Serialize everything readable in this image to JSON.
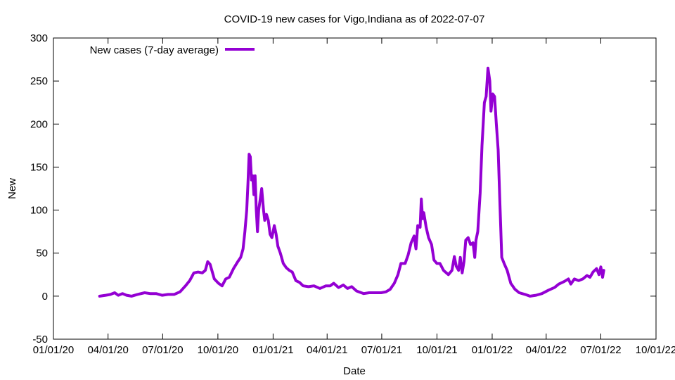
{
  "chart_data": {
    "type": "line",
    "title": "COVID-19 new cases for Vigo,Indiana as of 2022-07-07",
    "xlabel": "Date",
    "ylabel": "New",
    "xlim": [
      "2020-01-01",
      "2022-10-01"
    ],
    "ylim": [
      -50,
      300
    ],
    "x_ticks": [
      {
        "date": "2020-01-01",
        "label": "01/01/20"
      },
      {
        "date": "2020-04-01",
        "label": "04/01/20"
      },
      {
        "date": "2020-07-01",
        "label": "07/01/20"
      },
      {
        "date": "2020-10-01",
        "label": "10/01/20"
      },
      {
        "date": "2021-01-01",
        "label": "01/01/21"
      },
      {
        "date": "2021-04-01",
        "label": "04/01/21"
      },
      {
        "date": "2021-07-01",
        "label": "07/01/21"
      },
      {
        "date": "2021-10-01",
        "label": "10/01/21"
      },
      {
        "date": "2022-01-01",
        "label": "01/01/22"
      },
      {
        "date": "2022-04-01",
        "label": "04/01/22"
      },
      {
        "date": "2022-07-01",
        "label": "07/01/22"
      },
      {
        "date": "2022-10-01",
        "label": "10/01/22"
      }
    ],
    "y_ticks": [
      -50,
      0,
      50,
      100,
      150,
      200,
      250,
      300
    ],
    "grid": false,
    "legend_position": "top-left",
    "color": "#9400d3",
    "series": [
      {
        "name": "New cases (7-day average)",
        "points": [
          [
            "2020-03-18",
            0
          ],
          [
            "2020-03-28",
            1
          ],
          [
            "2020-04-05",
            2
          ],
          [
            "2020-04-12",
            4
          ],
          [
            "2020-04-18",
            1
          ],
          [
            "2020-04-25",
            3
          ],
          [
            "2020-05-02",
            1
          ],
          [
            "2020-05-10",
            0
          ],
          [
            "2020-05-20",
            2
          ],
          [
            "2020-06-01",
            4
          ],
          [
            "2020-06-10",
            3
          ],
          [
            "2020-06-20",
            3
          ],
          [
            "2020-06-30",
            1
          ],
          [
            "2020-07-10",
            2
          ],
          [
            "2020-07-20",
            2
          ],
          [
            "2020-07-30",
            5
          ],
          [
            "2020-08-08",
            12
          ],
          [
            "2020-08-15",
            18
          ],
          [
            "2020-08-22",
            27
          ],
          [
            "2020-08-29",
            28
          ],
          [
            "2020-09-05",
            27
          ],
          [
            "2020-09-10",
            30
          ],
          [
            "2020-09-14",
            40
          ],
          [
            "2020-09-18",
            37
          ],
          [
            "2020-09-21",
            30
          ],
          [
            "2020-09-25",
            20
          ],
          [
            "2020-10-02",
            15
          ],
          [
            "2020-10-08",
            12
          ],
          [
            "2020-10-14",
            20
          ],
          [
            "2020-10-20",
            22
          ],
          [
            "2020-10-27",
            32
          ],
          [
            "2020-11-03",
            40
          ],
          [
            "2020-11-08",
            45
          ],
          [
            "2020-11-12",
            55
          ],
          [
            "2020-11-15",
            75
          ],
          [
            "2020-11-18",
            100
          ],
          [
            "2020-11-20",
            130
          ],
          [
            "2020-11-22",
            165
          ],
          [
            "2020-11-24",
            162
          ],
          [
            "2020-11-26",
            135
          ],
          [
            "2020-11-28",
            140
          ],
          [
            "2020-11-30",
            118
          ],
          [
            "2020-12-02",
            140
          ],
          [
            "2020-12-04",
            100
          ],
          [
            "2020-12-06",
            75
          ],
          [
            "2020-12-08",
            100
          ],
          [
            "2020-12-11",
            115
          ],
          [
            "2020-12-13",
            125
          ],
          [
            "2020-12-16",
            100
          ],
          [
            "2020-12-18",
            88
          ],
          [
            "2020-12-21",
            95
          ],
          [
            "2020-12-24",
            88
          ],
          [
            "2020-12-27",
            72
          ],
          [
            "2020-12-30",
            68
          ],
          [
            "2021-01-03",
            82
          ],
          [
            "2021-01-06",
            72
          ],
          [
            "2021-01-09",
            58
          ],
          [
            "2021-01-13",
            50
          ],
          [
            "2021-01-18",
            38
          ],
          [
            "2021-01-23",
            33
          ],
          [
            "2021-01-28",
            30
          ],
          [
            "2021-02-02",
            28
          ],
          [
            "2021-02-08",
            18
          ],
          [
            "2021-02-14",
            16
          ],
          [
            "2021-02-20",
            12
          ],
          [
            "2021-03-01",
            11
          ],
          [
            "2021-03-10",
            12
          ],
          [
            "2021-03-20",
            9
          ],
          [
            "2021-03-30",
            12
          ],
          [
            "2021-04-06",
            12
          ],
          [
            "2021-04-12",
            15
          ],
          [
            "2021-04-20",
            10
          ],
          [
            "2021-04-28",
            13
          ],
          [
            "2021-05-05",
            9
          ],
          [
            "2021-05-12",
            11
          ],
          [
            "2021-05-20",
            6
          ],
          [
            "2021-06-01",
            3
          ],
          [
            "2021-06-10",
            4
          ],
          [
            "2021-06-20",
            4
          ],
          [
            "2021-06-30",
            4
          ],
          [
            "2021-07-08",
            5
          ],
          [
            "2021-07-15",
            8
          ],
          [
            "2021-07-22",
            15
          ],
          [
            "2021-07-28",
            25
          ],
          [
            "2021-08-02",
            38
          ],
          [
            "2021-08-09",
            38
          ],
          [
            "2021-08-14",
            48
          ],
          [
            "2021-08-19",
            62
          ],
          [
            "2021-08-24",
            70
          ],
          [
            "2021-08-27",
            55
          ],
          [
            "2021-08-30",
            82
          ],
          [
            "2021-09-03",
            80
          ],
          [
            "2021-09-05",
            113
          ],
          [
            "2021-09-07",
            90
          ],
          [
            "2021-09-09",
            97
          ],
          [
            "2021-09-13",
            80
          ],
          [
            "2021-09-17",
            68
          ],
          [
            "2021-09-22",
            60
          ],
          [
            "2021-09-26",
            42
          ],
          [
            "2021-10-01",
            38
          ],
          [
            "2021-10-06",
            38
          ],
          [
            "2021-10-12",
            30
          ],
          [
            "2021-10-20",
            25
          ],
          [
            "2021-10-26",
            30
          ],
          [
            "2021-10-30",
            46
          ],
          [
            "2021-11-02",
            35
          ],
          [
            "2021-11-06",
            30
          ],
          [
            "2021-11-09",
            45
          ],
          [
            "2021-11-12",
            27
          ],
          [
            "2021-11-15",
            40
          ],
          [
            "2021-11-18",
            65
          ],
          [
            "2021-11-22",
            68
          ],
          [
            "2021-11-26",
            60
          ],
          [
            "2021-11-30",
            62
          ],
          [
            "2021-12-03",
            45
          ],
          [
            "2021-12-05",
            65
          ],
          [
            "2021-12-08",
            75
          ],
          [
            "2021-12-12",
            120
          ],
          [
            "2021-12-15",
            175
          ],
          [
            "2021-12-19",
            225
          ],
          [
            "2021-12-22",
            232
          ],
          [
            "2021-12-25",
            265
          ],
          [
            "2021-12-28",
            250
          ],
          [
            "2021-12-30",
            215
          ],
          [
            "2022-01-02",
            235
          ],
          [
            "2022-01-05",
            232
          ],
          [
            "2022-01-08",
            200
          ],
          [
            "2022-01-11",
            170
          ],
          [
            "2022-01-14",
            105
          ],
          [
            "2022-01-17",
            45
          ],
          [
            "2022-01-21",
            38
          ],
          [
            "2022-01-26",
            30
          ],
          [
            "2022-02-01",
            15
          ],
          [
            "2022-02-08",
            8
          ],
          [
            "2022-02-15",
            4
          ],
          [
            "2022-02-25",
            2
          ],
          [
            "2022-03-05",
            0
          ],
          [
            "2022-03-15",
            1
          ],
          [
            "2022-03-25",
            3
          ],
          [
            "2022-04-05",
            7
          ],
          [
            "2022-04-15",
            10
          ],
          [
            "2022-04-22",
            14
          ],
          [
            "2022-05-01",
            17
          ],
          [
            "2022-05-08",
            20
          ],
          [
            "2022-05-12",
            14
          ],
          [
            "2022-05-18",
            20
          ],
          [
            "2022-05-25",
            18
          ],
          [
            "2022-06-01",
            20
          ],
          [
            "2022-06-08",
            24
          ],
          [
            "2022-06-13",
            22
          ],
          [
            "2022-06-18",
            28
          ],
          [
            "2022-06-24",
            32
          ],
          [
            "2022-06-28",
            25
          ],
          [
            "2022-07-01",
            34
          ],
          [
            "2022-07-04",
            22
          ],
          [
            "2022-07-06",
            30
          ]
        ]
      }
    ]
  }
}
